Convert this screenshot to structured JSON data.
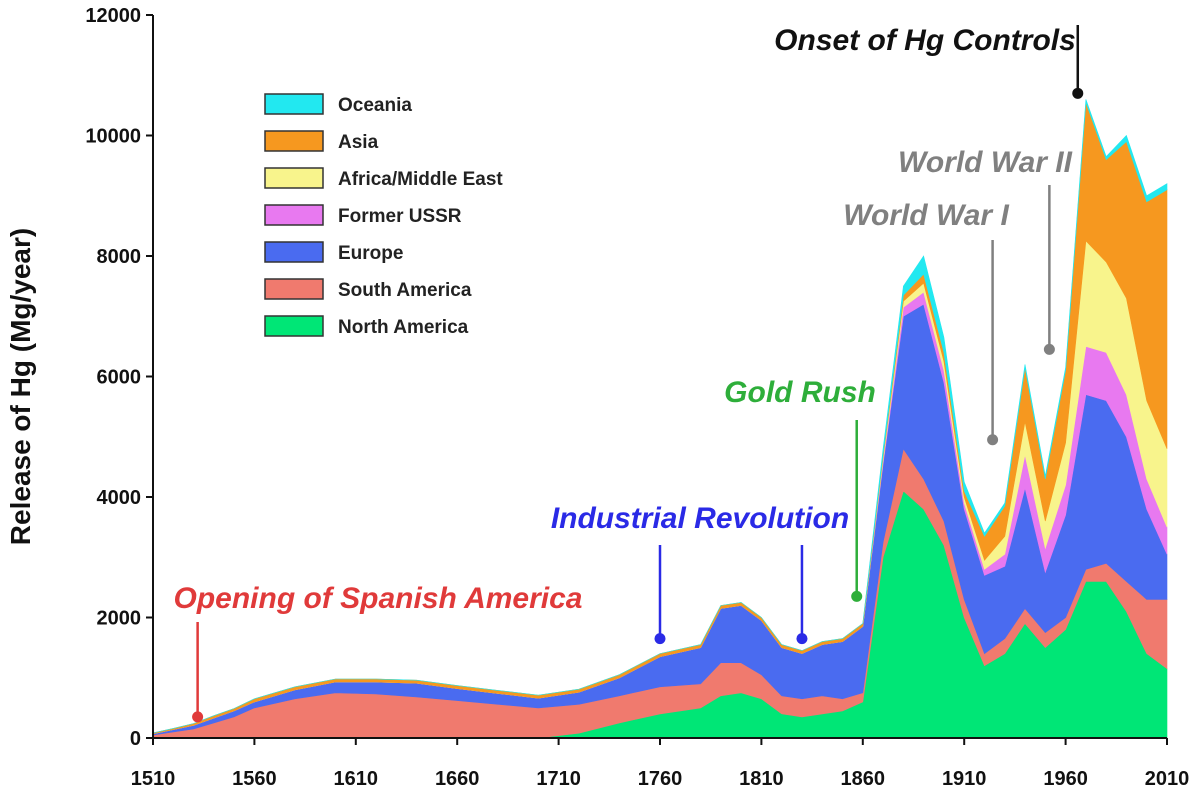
{
  "chart_data": {
    "type": "area",
    "stacked": true,
    "title": "",
    "xlabel": "",
    "ylabel": "Release of Hg (Mg/year)",
    "xlim": [
      1510,
      2010
    ],
    "ylim": [
      0,
      12000
    ],
    "xticks": [
      1510,
      1560,
      1610,
      1660,
      1710,
      1760,
      1810,
      1860,
      1910,
      1960,
      2010
    ],
    "yticks": [
      0,
      2000,
      4000,
      6000,
      8000,
      10000,
      12000
    ],
    "x": [
      1510,
      1520,
      1530,
      1540,
      1550,
      1560,
      1580,
      1600,
      1620,
      1640,
      1660,
      1680,
      1700,
      1720,
      1740,
      1760,
      1780,
      1790,
      1800,
      1810,
      1820,
      1830,
      1840,
      1850,
      1860,
      1870,
      1880,
      1890,
      1900,
      1910,
      1920,
      1930,
      1940,
      1950,
      1960,
      1970,
      1980,
      1990,
      2000,
      2010
    ],
    "legend_position": "top-left",
    "series": [
      {
        "name": "North America",
        "color": "#00e676",
        "values": [
          0,
          0,
          0,
          0,
          0,
          0,
          0,
          0,
          0,
          0,
          0,
          0,
          0,
          80,
          250,
          400,
          500,
          700,
          750,
          650,
          400,
          350,
          400,
          450,
          600,
          3000,
          4100,
          3800,
          3200,
          2000,
          1200,
          1400,
          1900,
          1500,
          1800,
          2600,
          2600,
          2100,
          1400,
          1150
        ]
      },
      {
        "name": "South America",
        "color": "#f07a6e",
        "values": [
          50,
          100,
          150,
          250,
          350,
          500,
          650,
          750,
          730,
          680,
          620,
          560,
          500,
          480,
          450,
          450,
          400,
          550,
          500,
          400,
          300,
          300,
          300,
          200,
          150,
          250,
          700,
          500,
          400,
          300,
          200,
          250,
          250,
          250,
          200,
          200,
          300,
          500,
          900,
          1150
        ]
      },
      {
        "name": "Europe",
        "color": "#4a6bf0",
        "values": [
          20,
          40,
          60,
          80,
          100,
          100,
          150,
          180,
          200,
          230,
          200,
          180,
          160,
          200,
          300,
          500,
          600,
          900,
          950,
          900,
          800,
          750,
          850,
          950,
          1100,
          1300,
          2200,
          2900,
          2300,
          1500,
          1300,
          1200,
          2000,
          1000,
          1700,
          2900,
          2700,
          2400,
          1500,
          750
        ]
      },
      {
        "name": "Former USSR",
        "color": "#e879f0",
        "values": [
          0,
          0,
          0,
          0,
          0,
          0,
          0,
          0,
          0,
          0,
          0,
          0,
          0,
          0,
          0,
          0,
          0,
          0,
          0,
          0,
          0,
          0,
          0,
          0,
          0,
          50,
          150,
          200,
          200,
          100,
          100,
          200,
          550,
          400,
          500,
          800,
          800,
          700,
          500,
          450
        ]
      },
      {
        "name": "Africa/Middle East",
        "color": "#f8f48c",
        "values": [
          0,
          0,
          0,
          0,
          0,
          0,
          0,
          0,
          0,
          0,
          0,
          0,
          0,
          0,
          0,
          0,
          0,
          0,
          0,
          0,
          0,
          0,
          0,
          0,
          0,
          50,
          100,
          150,
          150,
          100,
          150,
          300,
          550,
          450,
          700,
          1750,
          1500,
          1600,
          1300,
          1300
        ]
      },
      {
        "name": "Asia",
        "color": "#f6981f",
        "values": [
          15,
          20,
          30,
          40,
          40,
          50,
          50,
          50,
          50,
          50,
          50,
          50,
          50,
          50,
          50,
          50,
          50,
          50,
          50,
          50,
          50,
          50,
          50,
          50,
          50,
          50,
          100,
          150,
          150,
          100,
          400,
          500,
          900,
          700,
          1200,
          2300,
          1700,
          2600,
          3300,
          4300
        ]
      },
      {
        "name": "Oceania",
        "color": "#22e8f0",
        "values": [
          0,
          0,
          0,
          0,
          0,
          0,
          0,
          0,
          0,
          0,
          0,
          0,
          0,
          0,
          0,
          0,
          0,
          0,
          0,
          0,
          0,
          0,
          0,
          0,
          0,
          100,
          150,
          300,
          250,
          150,
          50,
          50,
          50,
          50,
          50,
          50,
          50,
          100,
          100,
          100
        ]
      }
    ],
    "annotations": [
      {
        "text": "Opening of Spanish America",
        "year": 1532,
        "marker_value": 350,
        "color": "#e03a3a"
      },
      {
        "text": "Industrial Revolution",
        "year": 1760,
        "marker_value": 1650,
        "color": "#2a2ae6"
      },
      {
        "text": "Industrial Revolution",
        "year": 1830,
        "marker_value": 1650,
        "color": "#2a2ae6",
        "shares_label": true
      },
      {
        "text": "Gold Rush",
        "year": 1857,
        "marker_value": 2350,
        "color": "#2eae3a"
      },
      {
        "text": "World War I",
        "year": 1924,
        "marker_value": 4950,
        "color": "#808080"
      },
      {
        "text": "World War II",
        "year": 1952,
        "marker_value": 6450,
        "color": "#808080"
      },
      {
        "text": "Onset of Hg Controls",
        "year": 1966,
        "marker_value": 10700,
        "color": "#111111"
      }
    ]
  }
}
